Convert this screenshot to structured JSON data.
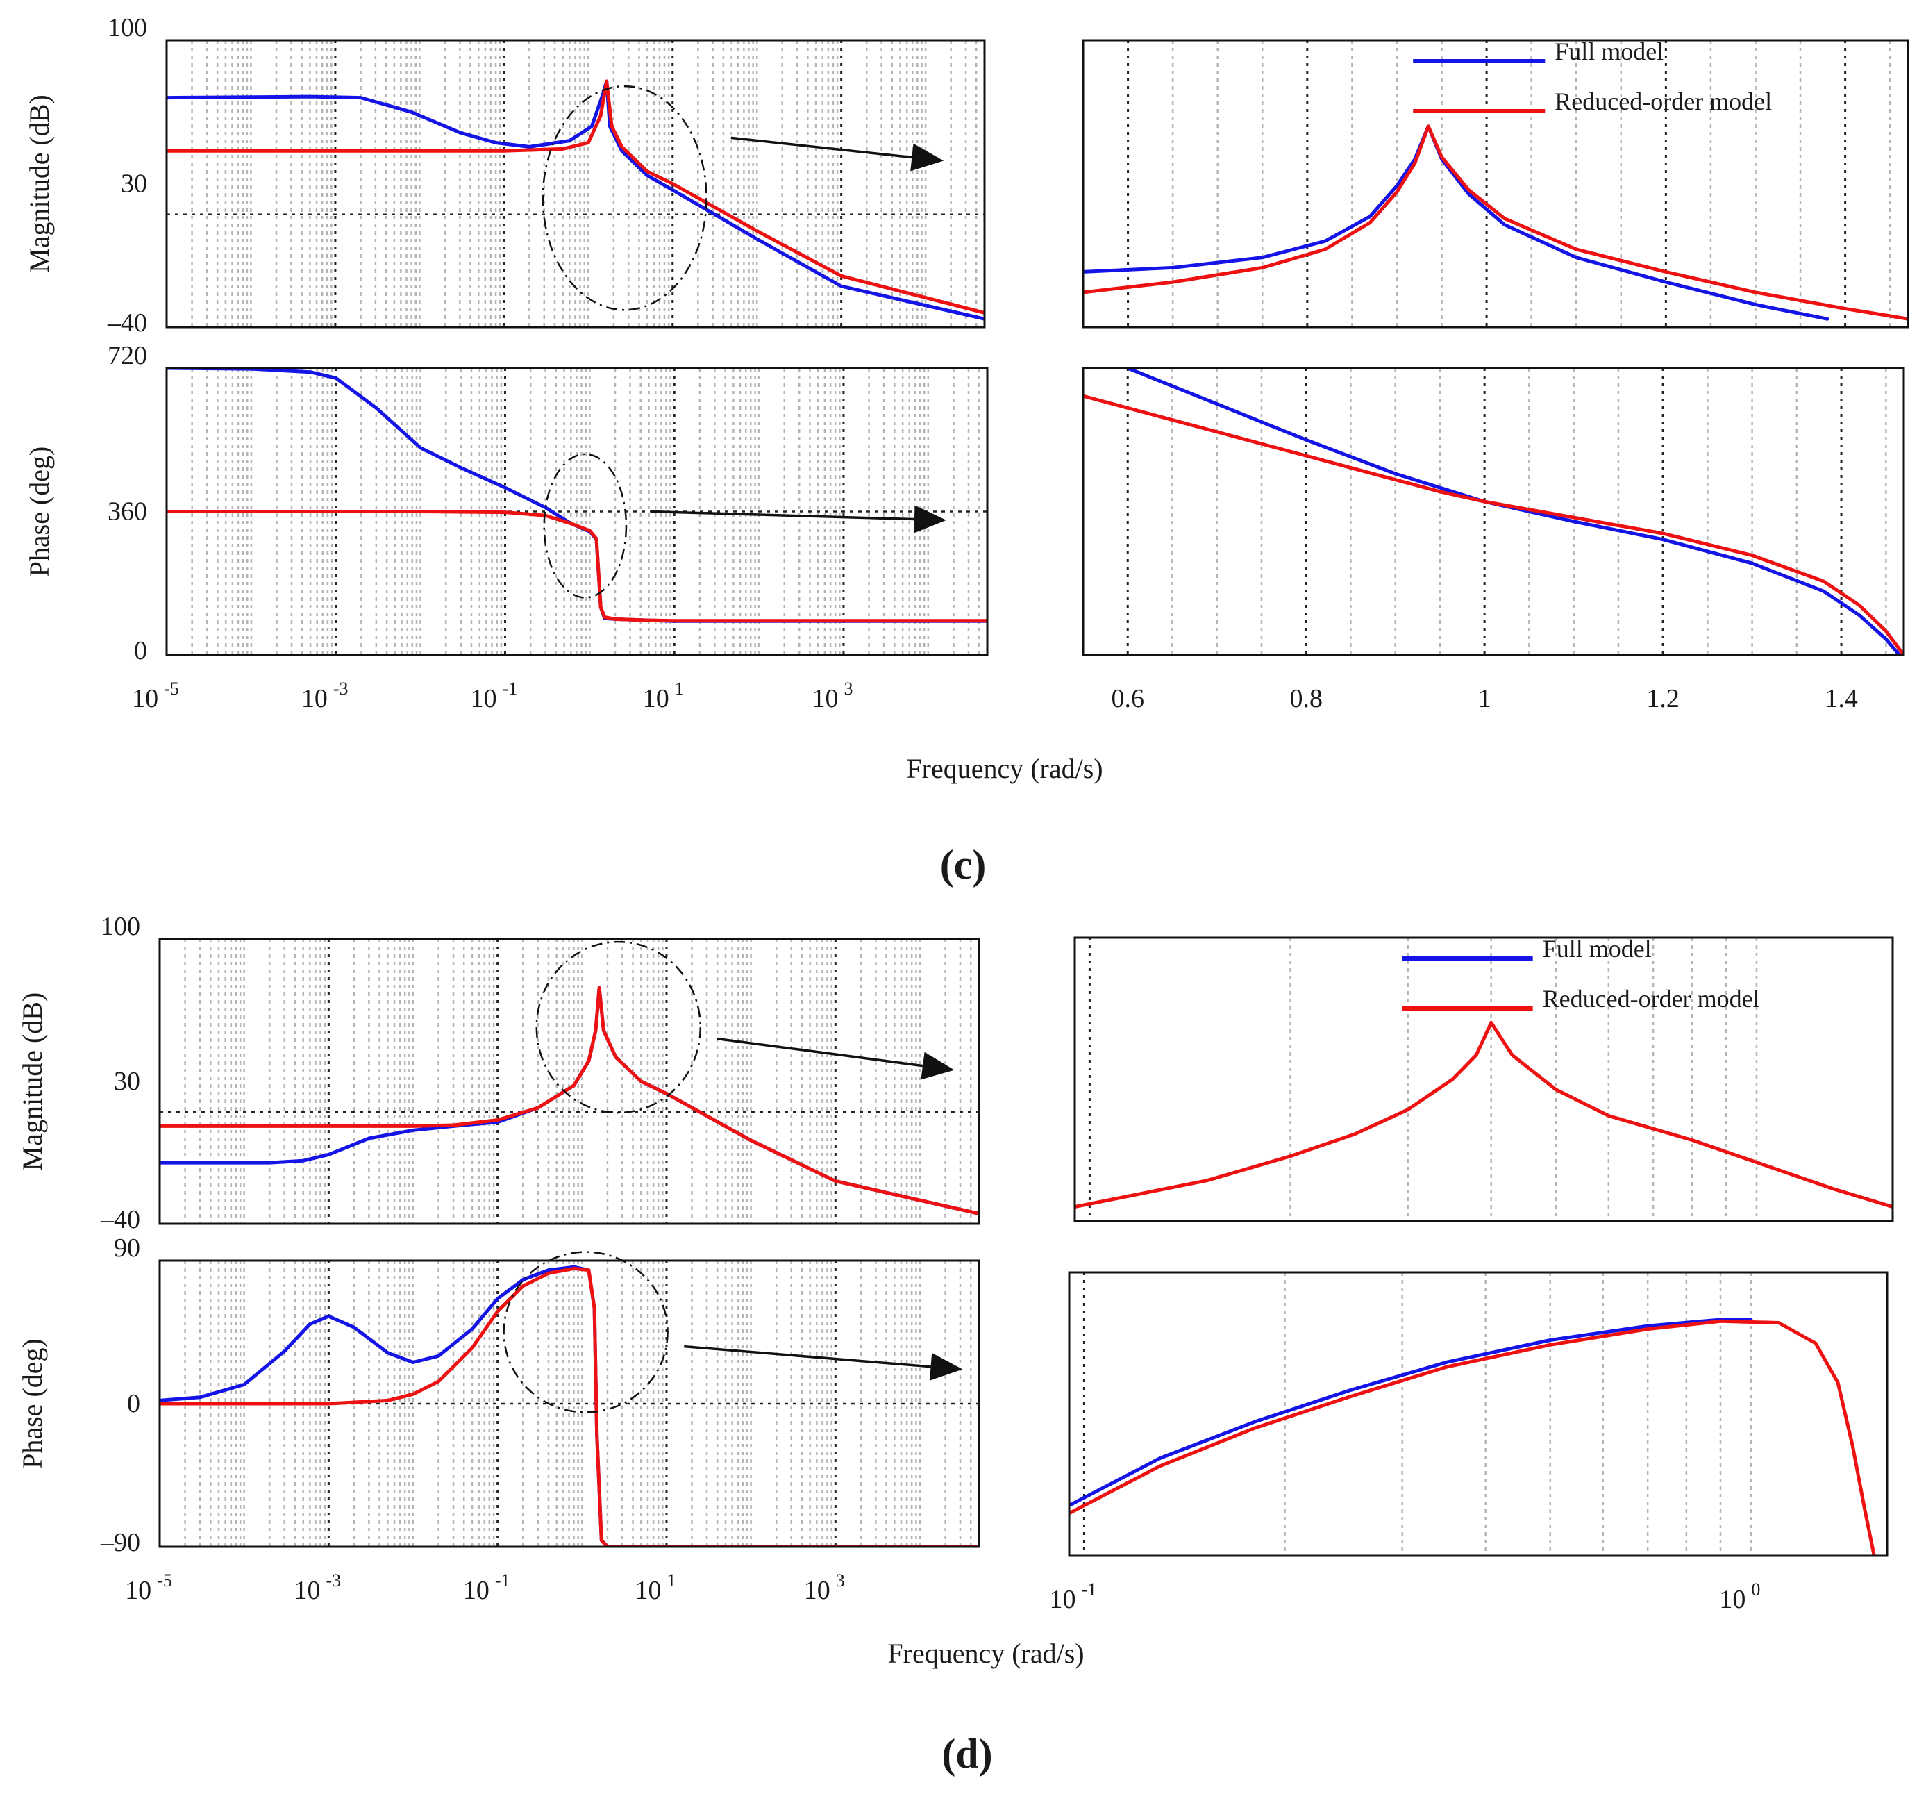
{
  "figure": {
    "panel_c_label": "(c)",
    "panel_d_label": "(d)",
    "xlabel": "Frequency (rad/s)",
    "colors": {
      "full_model": "#1414e6",
      "reduced_model": "#ee1111",
      "axis": "#111111",
      "grid_minor": "#b4b4b4",
      "grid_major": "#222222"
    }
  },
  "chart_data": [
    {
      "id": "c_mag_main",
      "type": "line",
      "panel": "c",
      "xscale": "log",
      "xlim": [
        1e-05,
        50000
      ],
      "ylim": [
        -40,
        100
      ],
      "ylabel": "Magnitude (dB)",
      "yticks": [
        {
          "v": -40,
          "label": "–40"
        },
        {
          "v": 30,
          "label": "30"
        },
        {
          "v": 100,
          "label": "100"
        }
      ],
      "xticks": [],
      "refline_y": 15,
      "grid": true,
      "series": [
        {
          "name": "Full model",
          "x": [
            1e-05,
            0.0005,
            0.002,
            0.008,
            0.03,
            0.08,
            0.2,
            0.6,
            1.1,
            1.5,
            1.65,
            1.8,
            2.5,
            5,
            10,
            100,
            1000,
            50000
          ],
          "y": [
            72,
            72.5,
            72,
            65,
            55,
            50,
            48,
            51,
            58,
            74,
            80,
            58,
            46,
            34,
            27,
            3,
            -20,
            -36
          ]
        },
        {
          "name": "Reduced-order model",
          "x": [
            1e-05,
            0.01,
            0.1,
            0.5,
            1.0,
            1.4,
            1.65,
            1.9,
            2.5,
            5,
            10,
            100,
            1000,
            50000
          ],
          "y": [
            46,
            46,
            46,
            47,
            50,
            63,
            80,
            58,
            48,
            36,
            30,
            7,
            -15,
            -33
          ]
        }
      ],
      "annotations": [
        {
          "type": "dash-ellipse-arrow",
          "text": ""
        }
      ]
    },
    {
      "id": "c_mag_zoom",
      "type": "line",
      "panel": "c",
      "xscale": "linear",
      "xlim": [
        0.55,
        1.47
      ],
      "ylim": [
        -40,
        100
      ],
      "xticks": [],
      "legend": [
        "Full model",
        "Reduced-order model"
      ],
      "legend_position": "top-right",
      "series": [
        {
          "name": "Full model",
          "x": [
            0.55,
            0.65,
            0.75,
            0.82,
            0.87,
            0.9,
            0.92,
            0.935,
            0.95,
            0.98,
            1.02,
            1.1,
            1.2,
            1.3,
            1.38
          ],
          "y": [
            -13,
            -11,
            -6,
            2,
            14,
            29,
            42,
            58,
            42,
            25,
            10,
            -6,
            -18,
            -29,
            -36
          ]
        },
        {
          "name": "Reduced-order model",
          "x": [
            0.55,
            0.65,
            0.75,
            0.82,
            0.87,
            0.9,
            0.92,
            0.935,
            0.95,
            0.98,
            1.02,
            1.1,
            1.2,
            1.3,
            1.4,
            1.47
          ],
          "y": [
            -23,
            -18,
            -11,
            -2,
            11,
            26,
            40,
            58,
            43,
            27,
            13,
            -2,
            -13,
            -23,
            -31,
            -36
          ]
        }
      ]
    },
    {
      "id": "c_phase_main",
      "type": "line",
      "panel": "c",
      "xscale": "log",
      "xlim": [
        1e-05,
        50000
      ],
      "ylim": [
        0,
        720
      ],
      "ylabel": "Phase (deg)",
      "yticks": [
        {
          "v": 0,
          "label": "0"
        },
        {
          "v": 360,
          "label": "360"
        },
        {
          "v": 720,
          "label": "720"
        }
      ],
      "xticks": [
        {
          "v": 1e-05,
          "base": "10",
          "exp": "-5"
        },
        {
          "v": 0.001,
          "base": "10",
          "exp": "-3"
        },
        {
          "v": 0.1,
          "base": "10",
          "exp": "-1"
        },
        {
          "v": 10,
          "base": "10",
          "exp": "1"
        },
        {
          "v": 1000,
          "base": "10",
          "exp": "3"
        }
      ],
      "refline_y": 360,
      "grid": true,
      "series": [
        {
          "name": "Full model",
          "x": [
            1e-05,
            0.0001,
            0.0005,
            0.001,
            0.003,
            0.01,
            0.03,
            0.1,
            0.3,
            0.6,
            1.0,
            1.2,
            1.35,
            1.5,
            2,
            5,
            10,
            50000
          ],
          "y": [
            720,
            718,
            710,
            695,
            620,
            520,
            470,
            420,
            370,
            330,
            310,
            290,
            120,
            92,
            90,
            87,
            85,
            85
          ]
        },
        {
          "name": "Reduced-order model",
          "x": [
            1e-05,
            0.01,
            0.1,
            0.3,
            0.6,
            1.0,
            1.2,
            1.35,
            1.5,
            2,
            5,
            10,
            50000
          ],
          "y": [
            360,
            360,
            358,
            350,
            330,
            312,
            292,
            120,
            95,
            90,
            87,
            86,
            86
          ]
        }
      ],
      "annotations": [
        {
          "type": "dash-ellipse-arrow",
          "text": ""
        }
      ]
    },
    {
      "id": "c_phase_zoom",
      "type": "line",
      "panel": "c",
      "xscale": "linear",
      "xlim": [
        0.55,
        1.47
      ],
      "ylim": [
        0,
        720
      ],
      "xticks": [
        {
          "v": 0.6,
          "label": "0.6"
        },
        {
          "v": 0.8,
          "label": "0.8"
        },
        {
          "v": 1.0,
          "label": "1"
        },
        {
          "v": 1.2,
          "label": "1.2"
        },
        {
          "v": 1.4,
          "label": "1.4"
        }
      ],
      "series": [
        {
          "name": "Full model",
          "x": [
            0.6,
            0.7,
            0.8,
            0.9,
            1.0,
            1.1,
            1.2,
            1.3,
            1.38,
            1.42,
            1.45,
            1.465
          ],
          "y": [
            720,
            630,
            540,
            455,
            385,
            335,
            290,
            230,
            160,
            100,
            40,
            0
          ]
        },
        {
          "name": "Reduced-order model",
          "x": [
            0.55,
            0.65,
            0.75,
            0.85,
            0.95,
            1.0,
            1.1,
            1.2,
            1.3,
            1.38,
            1.42,
            1.45,
            1.47
          ],
          "y": [
            650,
            590,
            530,
            470,
            410,
            385,
            345,
            305,
            250,
            185,
            125,
            60,
            0
          ]
        }
      ]
    },
    {
      "id": "d_mag_main",
      "type": "line",
      "panel": "d",
      "xscale": "log",
      "xlim": [
        1e-05,
        50000
      ],
      "ylim": [
        -40,
        100
      ],
      "ylabel": "Magnitude (dB)",
      "yticks": [
        {
          "v": -40,
          "label": "–40"
        },
        {
          "v": 30,
          "label": "30"
        },
        {
          "v": 100,
          "label": "100"
        }
      ],
      "xticks": [],
      "refline_y": 15,
      "grid": true,
      "series": [
        {
          "name": "Full model",
          "x": [
            1e-05,
            0.0002,
            0.0005,
            0.001,
            0.003,
            0.01,
            0.03,
            0.1,
            0.3,
            0.8,
            1.2,
            1.45,
            1.6,
            1.8,
            2.5,
            5,
            10,
            100,
            1000,
            50000
          ],
          "y": [
            -10,
            -10,
            -9,
            -6,
            2,
            6,
            8,
            10,
            17,
            28,
            40,
            55,
            76,
            55,
            42,
            30,
            24,
            1,
            -19,
            -35
          ]
        },
        {
          "name": "Reduced-order model",
          "x": [
            1e-05,
            0.001,
            0.01,
            0.03,
            0.1,
            0.3,
            0.8,
            1.2,
            1.45,
            1.6,
            1.8,
            2.5,
            5,
            10,
            100,
            1000,
            50000
          ],
          "y": [
            8,
            8,
            8,
            8.5,
            11,
            17,
            28,
            40,
            55,
            76,
            55,
            42,
            30,
            24,
            1,
            -19,
            -35
          ]
        }
      ],
      "annotations": [
        {
          "type": "dash-ellipse-arrow",
          "text": ""
        }
      ]
    },
    {
      "id": "d_mag_zoom",
      "type": "line",
      "panel": "d",
      "xscale": "log",
      "xlim": [
        0.095,
        1.6
      ],
      "ylim": [
        -40,
        100
      ],
      "xticks": [],
      "legend": [
        "Full model",
        "Reduced-order model"
      ],
      "legend_position": "top-right",
      "series": [
        {
          "name": "Reduced-order model",
          "x": [
            0.095,
            0.15,
            0.2,
            0.25,
            0.3,
            0.35,
            0.38,
            0.4,
            0.43,
            0.5,
            0.6,
            0.8,
            1.0,
            1.3,
            1.6
          ],
          "y": [
            -33,
            -20,
            -8,
            3,
            15,
            30,
            42,
            58,
            42,
            25,
            12,
            0,
            -11,
            -24,
            -33
          ]
        }
      ]
    },
    {
      "id": "d_phase_main",
      "type": "line",
      "panel": "d",
      "xscale": "log",
      "xlim": [
        1e-05,
        50000
      ],
      "ylim": [
        -90,
        90
      ],
      "ylabel": "Phase (deg)",
      "yticks": [
        {
          "v": -90,
          "label": "–90"
        },
        {
          "v": 0,
          "label": "0"
        },
        {
          "v": 90,
          "label": "90"
        }
      ],
      "xticks": [
        {
          "v": 1e-05,
          "base": "10",
          "exp": "-5"
        },
        {
          "v": 0.001,
          "base": "10",
          "exp": "-3"
        },
        {
          "v": 0.1,
          "base": "10",
          "exp": "-1"
        },
        {
          "v": 10,
          "base": "10",
          "exp": "1"
        },
        {
          "v": 1000,
          "base": "10",
          "exp": "3"
        }
      ],
      "refline_y": 0,
      "grid": true,
      "series": [
        {
          "name": "Full model",
          "x": [
            1e-05,
            3e-05,
            0.0001,
            0.0003,
            0.0006,
            0.001,
            0.002,
            0.005,
            0.01,
            0.02,
            0.05,
            0.1,
            0.2,
            0.4,
            0.8,
            1.2,
            1.4,
            1.5,
            1.7,
            2,
            10,
            50000
          ],
          "y": [
            2,
            4,
            12,
            33,
            50,
            55,
            48,
            32,
            26,
            30,
            47,
            66,
            78,
            84,
            86,
            84,
            60,
            -20,
            -86,
            -90,
            -90,
            -90
          ]
        },
        {
          "name": "Reduced-order model",
          "x": [
            1e-05,
            0.001,
            0.005,
            0.01,
            0.02,
            0.05,
            0.1,
            0.2,
            0.4,
            0.8,
            1.2,
            1.4,
            1.5,
            1.7,
            2,
            10,
            50000
          ],
          "y": [
            0,
            0,
            2,
            6,
            14,
            35,
            58,
            74,
            82,
            85,
            84,
            60,
            -20,
            -86,
            -90,
            -90,
            -90
          ]
        }
      ],
      "annotations": [
        {
          "type": "dash-ellipse-arrow",
          "text": ""
        }
      ]
    },
    {
      "id": "d_phase_zoom",
      "type": "line",
      "panel": "d",
      "xscale": "log",
      "xlim": [
        0.095,
        1.6
      ],
      "ylim": [
        -90,
        90
      ],
      "xticks": [
        {
          "v": 0.1,
          "base": "10",
          "exp": "-1"
        },
        {
          "v": 1.0,
          "base": "10",
          "exp": "0"
        }
      ],
      "series": [
        {
          "name": "Full model",
          "x": [
            0.095,
            0.13,
            0.18,
            0.25,
            0.35,
            0.5,
            0.7,
            0.9,
            1.0
          ],
          "y": [
            -58,
            -28,
            -5,
            15,
            33,
            47,
            56,
            60,
            60
          ]
        },
        {
          "name": "Reduced-order model",
          "x": [
            0.095,
            0.13,
            0.18,
            0.25,
            0.35,
            0.5,
            0.7,
            0.9,
            1.1,
            1.25,
            1.35,
            1.42,
            1.48,
            1.53
          ],
          "y": [
            -63,
            -33,
            -9,
            11,
            30,
            44,
            54,
            59,
            58,
            45,
            20,
            -20,
            -60,
            -90
          ]
        }
      ]
    }
  ]
}
